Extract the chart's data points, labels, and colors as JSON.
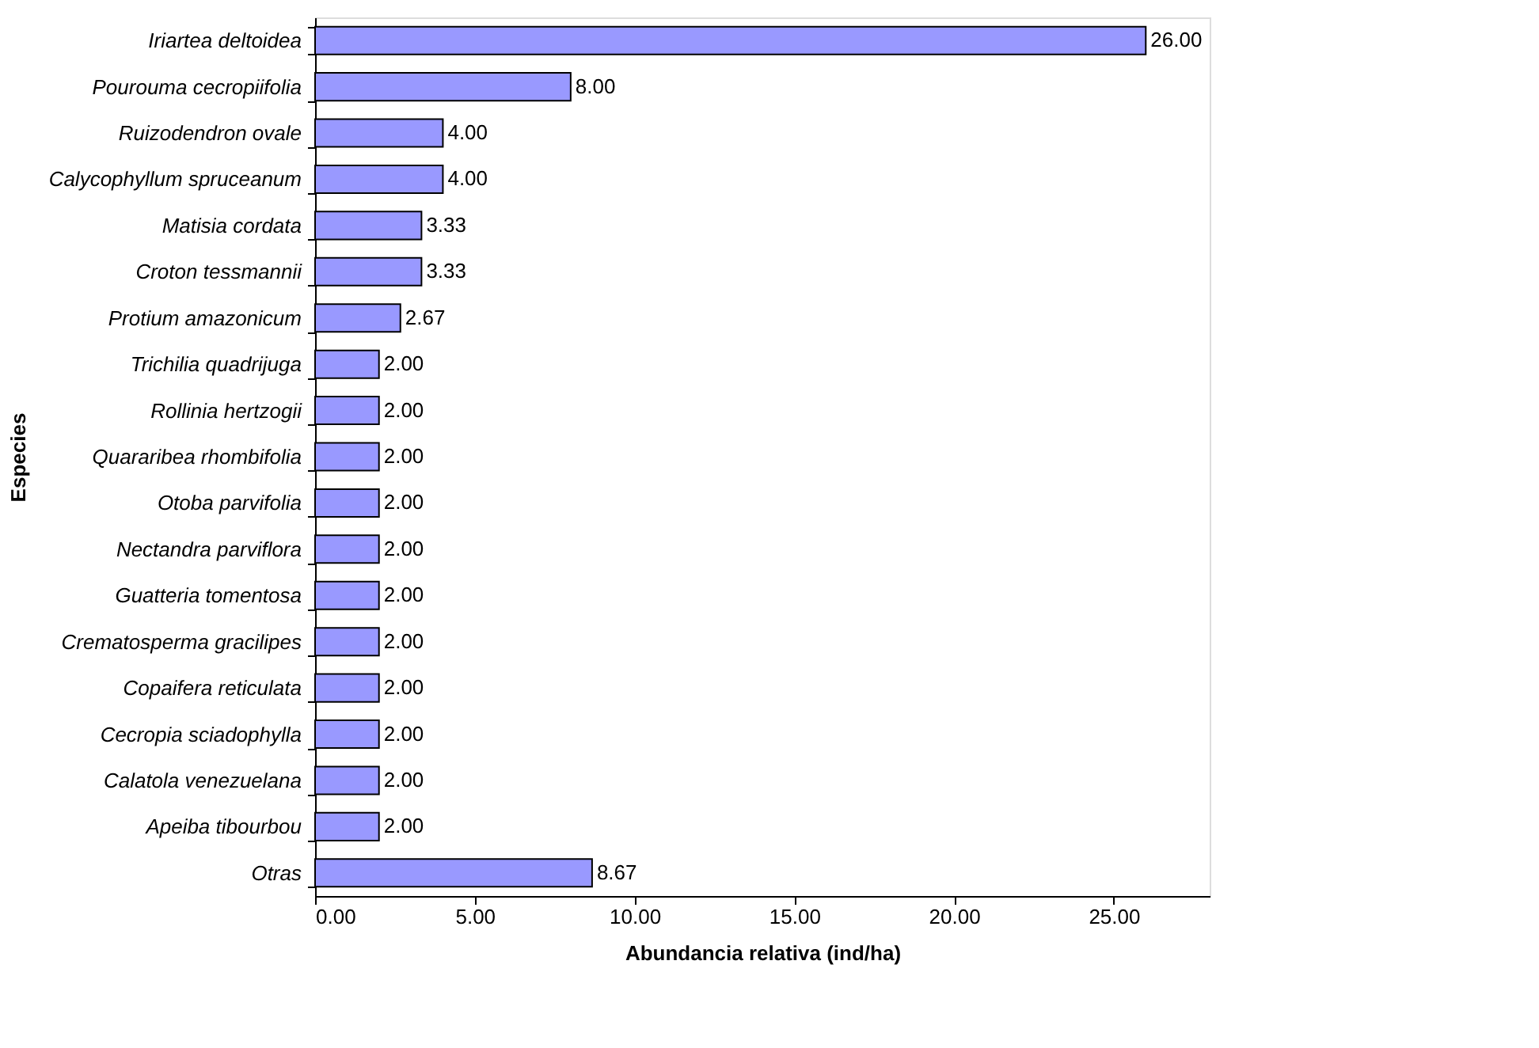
{
  "chart_data": {
    "type": "bar",
    "orientation": "horizontal",
    "xlabel": "Abundancia relativa (ind/ha)",
    "ylabel": "Especies",
    "categories": [
      "Iriartea deltoidea",
      "Pourouma cecropiifolia",
      "Ruizodendron ovale",
      "Calycophyllum spruceanum",
      "Matisia cordata",
      "Croton tessmannii",
      "Protium amazonicum",
      "Trichilia quadrijuga",
      "Rollinia hertzogii",
      "Quararibea rhombifolia",
      "Otoba parvifolia",
      "Nectandra parviflora",
      "Guatteria tomentosa",
      "Crematosperma gracilipes",
      "Copaifera reticulata",
      "Cecropia sciadophylla",
      "Calatola venezuelana",
      "Apeiba tibourbou",
      "Otras"
    ],
    "values": [
      26,
      8,
      4,
      4,
      3.33,
      3.33,
      2.67,
      2,
      2,
      2,
      2,
      2,
      2,
      2,
      2,
      2,
      2,
      2,
      8.67
    ],
    "value_labels": [
      "26.00",
      "8.00",
      "4.00",
      "4.00",
      "3.33",
      "3.33",
      "2.67",
      "2.00",
      "2.00",
      "2.00",
      "2.00",
      "2.00",
      "2.00",
      "2.00",
      "2.00",
      "2.00",
      "2.00",
      "2.00",
      "8.67"
    ],
    "color": "#9999ff",
    "xlim": [
      0,
      28
    ],
    "xticks": [
      {
        "value": 0,
        "label": "0.00"
      },
      {
        "value": 5,
        "label": "5.00"
      },
      {
        "value": 10,
        "label": "10.00"
      },
      {
        "value": 15,
        "label": "15.00"
      },
      {
        "value": 20,
        "label": "20.00"
      },
      {
        "value": 25,
        "label": "25.00"
      }
    ],
    "grid": false
  }
}
